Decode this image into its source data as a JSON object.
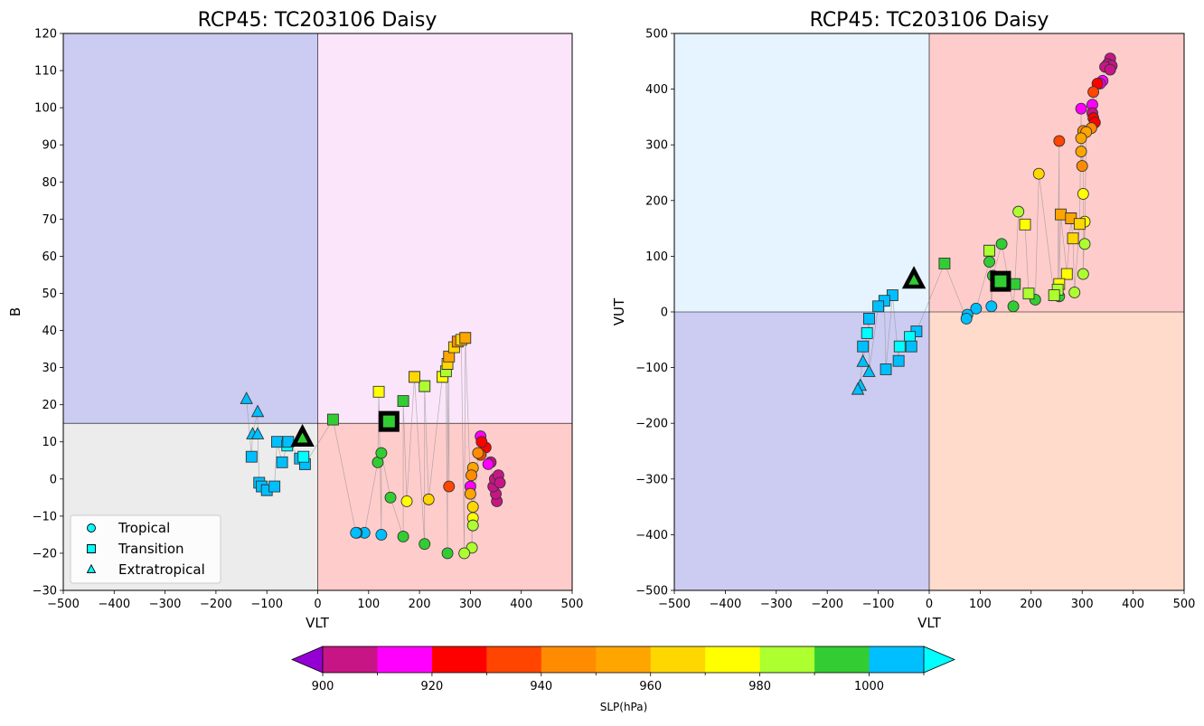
{
  "chart_data": [
    {
      "type": "scatter",
      "title": "RCP45: TC203106 Daisy",
      "xlabel": "VLT",
      "ylabel": "B",
      "xlim": [
        -500,
        500
      ],
      "ylim": [
        -30,
        120
      ],
      "xticks": [
        "−500",
        "−400",
        "−300",
        "−200",
        "−100",
        "0",
        "100",
        "200",
        "300",
        "400",
        "500"
      ],
      "yticks": [
        "−30",
        "−20",
        "−10",
        "0",
        "10",
        "20",
        "30",
        "40",
        "50",
        "60",
        "70",
        "80",
        "90",
        "100",
        "110",
        "120"
      ],
      "threshold_y": 15,
      "quadrant_colors": {
        "upper_left": "#ccccf2",
        "upper_right": "#fbe5fa",
        "lower_left": "#ececec",
        "lower_right": "#ffcccc"
      },
      "legend_position": "lower-left",
      "start_marker": {
        "x": 140,
        "y": 15.5,
        "shape": "square",
        "slp": 995
      },
      "end_marker": {
        "x": -30,
        "y": 11,
        "shape": "triangle",
        "slp": 995
      },
      "track": [
        {
          "x": 352,
          "y": -6,
          "shape": "circle",
          "slp": 905
        },
        {
          "x": 350,
          "y": -4,
          "shape": "circle",
          "slp": 905
        },
        {
          "x": 345,
          "y": -2,
          "shape": "circle",
          "slp": 905
        },
        {
          "x": 348,
          "y": 0,
          "shape": "circle",
          "slp": 905
        },
        {
          "x": 355,
          "y": 1,
          "shape": "circle",
          "slp": 905
        },
        {
          "x": 358,
          "y": -1,
          "shape": "circle",
          "slp": 905
        },
        {
          "x": 340,
          "y": 4.5,
          "shape": "circle",
          "slp": 905
        },
        {
          "x": 335,
          "y": 4,
          "shape": "circle",
          "slp": 915
        },
        {
          "x": 330,
          "y": 8.5,
          "shape": "circle",
          "slp": 925
        },
        {
          "x": 320,
          "y": 11.5,
          "shape": "circle",
          "slp": 915
        },
        {
          "x": 322,
          "y": 10,
          "shape": "circle",
          "slp": 925
        },
        {
          "x": 320,
          "y": 6.5,
          "shape": "circle",
          "slp": 935
        },
        {
          "x": 315,
          "y": 7,
          "shape": "circle",
          "slp": 945
        },
        {
          "x": 305,
          "y": 3,
          "shape": "circle",
          "slp": 955
        },
        {
          "x": 302,
          "y": 1,
          "shape": "circle",
          "slp": 945
        },
        {
          "x": 300,
          "y": -2,
          "shape": "circle",
          "slp": 915
        },
        {
          "x": 300,
          "y": -4,
          "shape": "circle",
          "slp": 955
        },
        {
          "x": 305,
          "y": -7.5,
          "shape": "circle",
          "slp": 965
        },
        {
          "x": 305,
          "y": -10.5,
          "shape": "circle",
          "slp": 975
        },
        {
          "x": 305,
          "y": -12.5,
          "shape": "circle",
          "slp": 985
        },
        {
          "x": 303,
          "y": -18.5,
          "shape": "circle",
          "slp": 985
        },
        {
          "x": 288,
          "y": -20,
          "shape": "circle",
          "slp": 985
        },
        {
          "x": 255,
          "y": -20,
          "shape": "circle",
          "slp": 995
        },
        {
          "x": 210,
          "y": -17.5,
          "shape": "circle",
          "slp": 995
        },
        {
          "x": 168,
          "y": -15.5,
          "shape": "circle",
          "slp": 995
        },
        {
          "x": 125,
          "y": -15,
          "shape": "circle",
          "slp": 1005
        },
        {
          "x": 92,
          "y": -14.5,
          "shape": "circle",
          "slp": 1005
        },
        {
          "x": 77,
          "y": -14.5,
          "shape": "circle",
          "slp": 1005
        },
        {
          "x": 75,
          "y": -14.5,
          "shape": "circle",
          "slp": 1005
        },
        {
          "x": 258,
          "y": -2,
          "shape": "circle",
          "slp": 935
        },
        {
          "x": 218,
          "y": -5.5,
          "shape": "circle",
          "slp": 965
        },
        {
          "x": 175,
          "y": -6,
          "shape": "circle",
          "slp": 975
        },
        {
          "x": 143,
          "y": -5,
          "shape": "circle",
          "slp": 995
        },
        {
          "x": 118,
          "y": 4.5,
          "shape": "circle",
          "slp": 995
        },
        {
          "x": 125,
          "y": 7,
          "shape": "circle",
          "slp": 995
        },
        {
          "x": 30,
          "y": 16,
          "shape": "square",
          "slp": 995
        },
        {
          "x": 168,
          "y": 21,
          "shape": "square",
          "slp": 995
        },
        {
          "x": 120,
          "y": 23.5,
          "shape": "square",
          "slp": 975
        },
        {
          "x": 210,
          "y": 25,
          "shape": "square",
          "slp": 985
        },
        {
          "x": 190,
          "y": 27.5,
          "shape": "square",
          "slp": 965
        },
        {
          "x": 245,
          "y": 27.5,
          "shape": "square",
          "slp": 975
        },
        {
          "x": 252,
          "y": 29,
          "shape": "square",
          "slp": 985
        },
        {
          "x": 255,
          "y": 31,
          "shape": "square",
          "slp": 965
        },
        {
          "x": 258,
          "y": 33,
          "shape": "square",
          "slp": 955
        },
        {
          "x": 268,
          "y": 35.5,
          "shape": "square",
          "slp": 965
        },
        {
          "x": 275,
          "y": 37,
          "shape": "square",
          "slp": 945
        },
        {
          "x": 282,
          "y": 37.5,
          "shape": "square",
          "slp": 965
        },
        {
          "x": 290,
          "y": 38,
          "shape": "square",
          "slp": 955
        },
        {
          "x": -130,
          "y": 6,
          "shape": "square",
          "slp": 1005
        },
        {
          "x": -115,
          "y": -1,
          "shape": "square",
          "slp": 1005
        },
        {
          "x": -110,
          "y": -2,
          "shape": "square",
          "slp": 1005
        },
        {
          "x": -100,
          "y": -3,
          "shape": "square",
          "slp": 1005
        },
        {
          "x": -85,
          "y": -2,
          "shape": "square",
          "slp": 1005
        },
        {
          "x": -80,
          "y": 10,
          "shape": "square",
          "slp": 1005
        },
        {
          "x": -70,
          "y": 4.5,
          "shape": "square",
          "slp": 1005
        },
        {
          "x": -60,
          "y": 9,
          "shape": "square",
          "slp": 1015
        },
        {
          "x": -58,
          "y": 10,
          "shape": "square",
          "slp": 1005
        },
        {
          "x": -35,
          "y": 5.5,
          "shape": "square",
          "slp": 1005
        },
        {
          "x": -25,
          "y": 4,
          "shape": "square",
          "slp": 1005
        },
        {
          "x": -28,
          "y": 6,
          "shape": "square",
          "slp": 1015
        },
        {
          "x": -140,
          "y": 21.5,
          "shape": "triangle",
          "slp": 1005
        },
        {
          "x": -118,
          "y": 18,
          "shape": "triangle",
          "slp": 1005
        },
        {
          "x": -128,
          "y": 12,
          "shape": "triangle",
          "slp": 1005
        },
        {
          "x": -118,
          "y": 12,
          "shape": "triangle",
          "slp": 1005
        }
      ]
    },
    {
      "type": "scatter",
      "title": "RCP45: TC203106 Daisy",
      "xlabel": "VLT",
      "ylabel": "VUT",
      "xlim": [
        -500,
        500
      ],
      "ylim": [
        -500,
        500
      ],
      "xticks": [
        "−500",
        "−400",
        "−300",
        "−200",
        "−100",
        "0",
        "100",
        "200",
        "300",
        "400",
        "500"
      ],
      "yticks": [
        "−500",
        "−400",
        "−300",
        "−200",
        "−100",
        "0",
        "100",
        "200",
        "300",
        "400",
        "500"
      ],
      "threshold_y": 0,
      "quadrant_colors": {
        "upper_left": "#e5f4ff",
        "upper_right": "#ffcccc",
        "lower_left": "#ccccf2",
        "lower_right": "#ffdbcc"
      },
      "start_marker": {
        "x": 140,
        "y": 55,
        "shape": "square",
        "slp": 995
      },
      "end_marker": {
        "x": -30,
        "y": 57,
        "shape": "triangle",
        "slp": 995
      },
      "track": [
        {
          "x": 355,
          "y": 455,
          "shape": "circle",
          "slp": 905
        },
        {
          "x": 350,
          "y": 445,
          "shape": "circle",
          "slp": 905
        },
        {
          "x": 358,
          "y": 442,
          "shape": "circle",
          "slp": 905
        },
        {
          "x": 345,
          "y": 440,
          "shape": "circle",
          "slp": 905
        },
        {
          "x": 355,
          "y": 435,
          "shape": "circle",
          "slp": 905
        },
        {
          "x": 340,
          "y": 415,
          "shape": "circle",
          "slp": 915
        },
        {
          "x": 335,
          "y": 410,
          "shape": "circle",
          "slp": 915
        },
        {
          "x": 330,
          "y": 410,
          "shape": "circle",
          "slp": 925
        },
        {
          "x": 322,
          "y": 395,
          "shape": "circle",
          "slp": 935
        },
        {
          "x": 320,
          "y": 372,
          "shape": "circle",
          "slp": 915
        },
        {
          "x": 298,
          "y": 365,
          "shape": "circle",
          "slp": 915
        },
        {
          "x": 320,
          "y": 357,
          "shape": "circle",
          "slp": 905
        },
        {
          "x": 322,
          "y": 348,
          "shape": "circle",
          "slp": 925
        },
        {
          "x": 325,
          "y": 340,
          "shape": "circle",
          "slp": 925
        },
        {
          "x": 318,
          "y": 330,
          "shape": "circle",
          "slp": 945
        },
        {
          "x": 302,
          "y": 325,
          "shape": "circle",
          "slp": 945
        },
        {
          "x": 308,
          "y": 323,
          "shape": "circle",
          "slp": 955
        },
        {
          "x": 298,
          "y": 312,
          "shape": "circle",
          "slp": 955
        },
        {
          "x": 255,
          "y": 307,
          "shape": "circle",
          "slp": 935
        },
        {
          "x": 298,
          "y": 288,
          "shape": "circle",
          "slp": 955
        },
        {
          "x": 300,
          "y": 262,
          "shape": "circle",
          "slp": 945
        },
        {
          "x": 215,
          "y": 248,
          "shape": "circle",
          "slp": 965
        },
        {
          "x": 302,
          "y": 212,
          "shape": "circle",
          "slp": 975
        },
        {
          "x": 175,
          "y": 180,
          "shape": "circle",
          "slp": 985
        },
        {
          "x": 305,
          "y": 162,
          "shape": "circle",
          "slp": 975
        },
        {
          "x": 305,
          "y": 122,
          "shape": "circle",
          "slp": 985
        },
        {
          "x": 142,
          "y": 122,
          "shape": "circle",
          "slp": 995
        },
        {
          "x": 118,
          "y": 90,
          "shape": "circle",
          "slp": 995
        },
        {
          "x": 125,
          "y": 65,
          "shape": "circle",
          "slp": 995
        },
        {
          "x": 302,
          "y": 68,
          "shape": "circle",
          "slp": 985
        },
        {
          "x": 285,
          "y": 35,
          "shape": "circle",
          "slp": 985
        },
        {
          "x": 255,
          "y": 28,
          "shape": "circle",
          "slp": 995
        },
        {
          "x": 208,
          "y": 22,
          "shape": "circle",
          "slp": 995
        },
        {
          "x": 165,
          "y": 10,
          "shape": "circle",
          "slp": 995
        },
        {
          "x": 122,
          "y": 10,
          "shape": "circle",
          "slp": 1005
        },
        {
          "x": 92,
          "y": 6,
          "shape": "circle",
          "slp": 1005
        },
        {
          "x": 75,
          "y": -5,
          "shape": "circle",
          "slp": 1005
        },
        {
          "x": 73,
          "y": -12,
          "shape": "circle",
          "slp": 1005
        },
        {
          "x": 258,
          "y": 175,
          "shape": "square",
          "slp": 955
        },
        {
          "x": 278,
          "y": 168,
          "shape": "square",
          "slp": 955
        },
        {
          "x": 295,
          "y": 158,
          "shape": "square",
          "slp": 965
        },
        {
          "x": 188,
          "y": 157,
          "shape": "square",
          "slp": 975
        },
        {
          "x": 282,
          "y": 132,
          "shape": "square",
          "slp": 965
        },
        {
          "x": 118,
          "y": 110,
          "shape": "square",
          "slp": 985
        },
        {
          "x": 30,
          "y": 87,
          "shape": "square",
          "slp": 995
        },
        {
          "x": 270,
          "y": 68,
          "shape": "square",
          "slp": 975
        },
        {
          "x": 168,
          "y": 50,
          "shape": "square",
          "slp": 995
        },
        {
          "x": 255,
          "y": 50,
          "shape": "square",
          "slp": 975
        },
        {
          "x": 252,
          "y": 40,
          "shape": "square",
          "slp": 985
        },
        {
          "x": 195,
          "y": 33,
          "shape": "square",
          "slp": 985
        },
        {
          "x": 245,
          "y": 30,
          "shape": "square",
          "slp": 985
        },
        {
          "x": -72,
          "y": 30,
          "shape": "square",
          "slp": 1005
        },
        {
          "x": -88,
          "y": 20,
          "shape": "square",
          "slp": 1005
        },
        {
          "x": -100,
          "y": 10,
          "shape": "square",
          "slp": 1005
        },
        {
          "x": -118,
          "y": -12,
          "shape": "square",
          "slp": 1005
        },
        {
          "x": -122,
          "y": -38,
          "shape": "square",
          "slp": 1015
        },
        {
          "x": -25,
          "y": -35,
          "shape": "square",
          "slp": 1005
        },
        {
          "x": -38,
          "y": -45,
          "shape": "square",
          "slp": 1015
        },
        {
          "x": -130,
          "y": -62,
          "shape": "square",
          "slp": 1005
        },
        {
          "x": -35,
          "y": -62,
          "shape": "square",
          "slp": 1005
        },
        {
          "x": -58,
          "y": -62,
          "shape": "square",
          "slp": 1015
        },
        {
          "x": -60,
          "y": -88,
          "shape": "square",
          "slp": 1005
        },
        {
          "x": -85,
          "y": -103,
          "shape": "square",
          "slp": 1005
        },
        {
          "x": -130,
          "y": -90,
          "shape": "triangle",
          "slp": 1005
        },
        {
          "x": -118,
          "y": -108,
          "shape": "triangle",
          "slp": 1005
        },
        {
          "x": -135,
          "y": -133,
          "shape": "triangle",
          "slp": 1005
        },
        {
          "x": -140,
          "y": -140,
          "shape": "triangle",
          "slp": 1005
        }
      ]
    }
  ],
  "legend": {
    "items": [
      {
        "label": "Tropical",
        "shape": "circle"
      },
      {
        "label": "Transition",
        "shape": "square"
      },
      {
        "label": "Extratropical",
        "shape": "triangle"
      }
    ],
    "marker_color": "#00ffff"
  },
  "colorbar": {
    "label": "SLP(hPa)",
    "bounds": [
      900,
      910,
      920,
      930,
      940,
      950,
      960,
      970,
      980,
      990,
      1000,
      1010
    ],
    "colors": [
      "#c71585",
      "#ff00ff",
      "#ff0000",
      "#ff4500",
      "#ff8c00",
      "#ffa500",
      "#ffd700",
      "#ffff00",
      "#adff2f",
      "#32cd32",
      "#00bfff"
    ],
    "under_color": "#9400d3",
    "over_color": "#00ffff",
    "tick_labels": [
      "900",
      "920",
      "940",
      "960",
      "980",
      "1000"
    ]
  }
}
